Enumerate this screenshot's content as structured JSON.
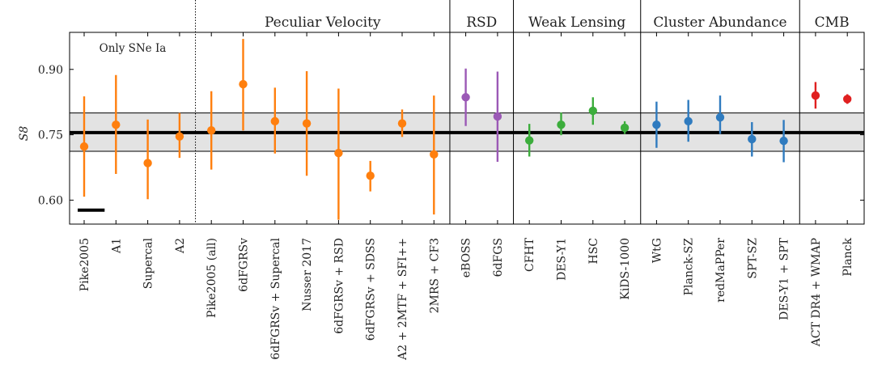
{
  "chart_data": {
    "type": "scatter",
    "ylabel": "S8",
    "ylim": [
      0.545,
      0.985
    ],
    "yticks": [
      0.6,
      0.75,
      0.9
    ],
    "ytick_labels": [
      "0.60",
      "0.75",
      "0.90"
    ],
    "grid": false,
    "reference": {
      "value": 0.755,
      "band": [
        0.712,
        0.8
      ],
      "band_color": "#e3e3e3"
    },
    "annotation": "Only SNe Ia",
    "sections": [
      {
        "label": "Peculiar Velocity",
        "first": 0,
        "last": 11
      },
      {
        "label": "RSD",
        "first": 12,
        "last": 13
      },
      {
        "label": "Weak Lensing",
        "first": 14,
        "last": 17
      },
      {
        "label": "Cluster Abundance",
        "first": 18,
        "last": 22
      },
      {
        "label": "CMB",
        "first": 23,
        "last": 24
      }
    ],
    "colors": {
      "pv": "#ff7f0e",
      "rsd": "#9b59b6",
      "wl": "#3cad3c",
      "cl": "#2f7bbf",
      "cmb": "#e02020"
    },
    "points": [
      {
        "label": "Pike2005",
        "y": 0.723,
        "lo": 0.608,
        "hi": 0.838,
        "color": "pv"
      },
      {
        "label": "A1",
        "y": 0.773,
        "lo": 0.66,
        "hi": 0.887,
        "color": "pv"
      },
      {
        "label": "Supercal",
        "y": 0.685,
        "lo": 0.602,
        "hi": 0.785,
        "color": "pv"
      },
      {
        "label": "A2",
        "y": 0.746,
        "lo": 0.697,
        "hi": 0.8,
        "color": "pv"
      },
      {
        "label": "Pike2005 (all)",
        "y": 0.76,
        "lo": 0.67,
        "hi": 0.85,
        "color": "pv"
      },
      {
        "label": "6dFGRSv",
        "y": 0.866,
        "lo": 0.76,
        "hi": 0.97,
        "color": "pv"
      },
      {
        "label": "6dFGRSv + Supercal",
        "y": 0.781,
        "lo": 0.707,
        "hi": 0.858,
        "color": "pv"
      },
      {
        "label": "Nusser 2017",
        "y": 0.776,
        "lo": 0.656,
        "hi": 0.896,
        "color": "pv"
      },
      {
        "label": "6dFGRSv + RSD",
        "y": 0.708,
        "lo": 0.555,
        "hi": 0.856,
        "color": "pv"
      },
      {
        "label": "6dFGRSv + SDSS",
        "y": 0.656,
        "lo": 0.62,
        "hi": 0.69,
        "color": "pv"
      },
      {
        "label": "A2 + 2MTF + SFI++",
        "y": 0.776,
        "lo": 0.745,
        "hi": 0.808,
        "color": "pv"
      },
      {
        "label": "2MRS + CF3",
        "y": 0.705,
        "lo": 0.567,
        "hi": 0.84,
        "color": "pv"
      },
      {
        "label": "eBOSS",
        "y": 0.836,
        "lo": 0.77,
        "hi": 0.902,
        "color": "rsd"
      },
      {
        "label": "6dFGS",
        "y": 0.792,
        "lo": 0.688,
        "hi": 0.895,
        "color": "rsd"
      },
      {
        "label": "CFHT",
        "y": 0.737,
        "lo": 0.7,
        "hi": 0.775,
        "color": "wl"
      },
      {
        "label": "DES-Y1",
        "y": 0.773,
        "lo": 0.749,
        "hi": 0.801,
        "color": "wl"
      },
      {
        "label": "HSC",
        "y": 0.805,
        "lo": 0.773,
        "hi": 0.836,
        "color": "wl"
      },
      {
        "label": "KiDS-1000",
        "y": 0.766,
        "lo": 0.752,
        "hi": 0.781,
        "color": "wl"
      },
      {
        "label": "WtG",
        "y": 0.773,
        "lo": 0.72,
        "hi": 0.826,
        "color": "cl"
      },
      {
        "label": "Planck-SZ",
        "y": 0.781,
        "lo": 0.734,
        "hi": 0.83,
        "color": "cl"
      },
      {
        "label": "redMaPPer",
        "y": 0.79,
        "lo": 0.752,
        "hi": 0.84,
        "color": "cl"
      },
      {
        "label": "SPT-SZ",
        "y": 0.74,
        "lo": 0.7,
        "hi": 0.779,
        "color": "cl"
      },
      {
        "label": "DES-Y1 + SPT",
        "y": 0.736,
        "lo": 0.687,
        "hi": 0.784,
        "color": "cl"
      },
      {
        "label": "ACT DR4 + WMAP",
        "y": 0.84,
        "lo": 0.81,
        "hi": 0.871,
        "color": "cmb"
      },
      {
        "label": "Planck",
        "y": 0.832,
        "lo": 0.821,
        "hi": 0.843,
        "color": "cmb"
      }
    ],
    "scale_bar": {
      "from": 0,
      "to": 1,
      "y": 0.577
    }
  }
}
